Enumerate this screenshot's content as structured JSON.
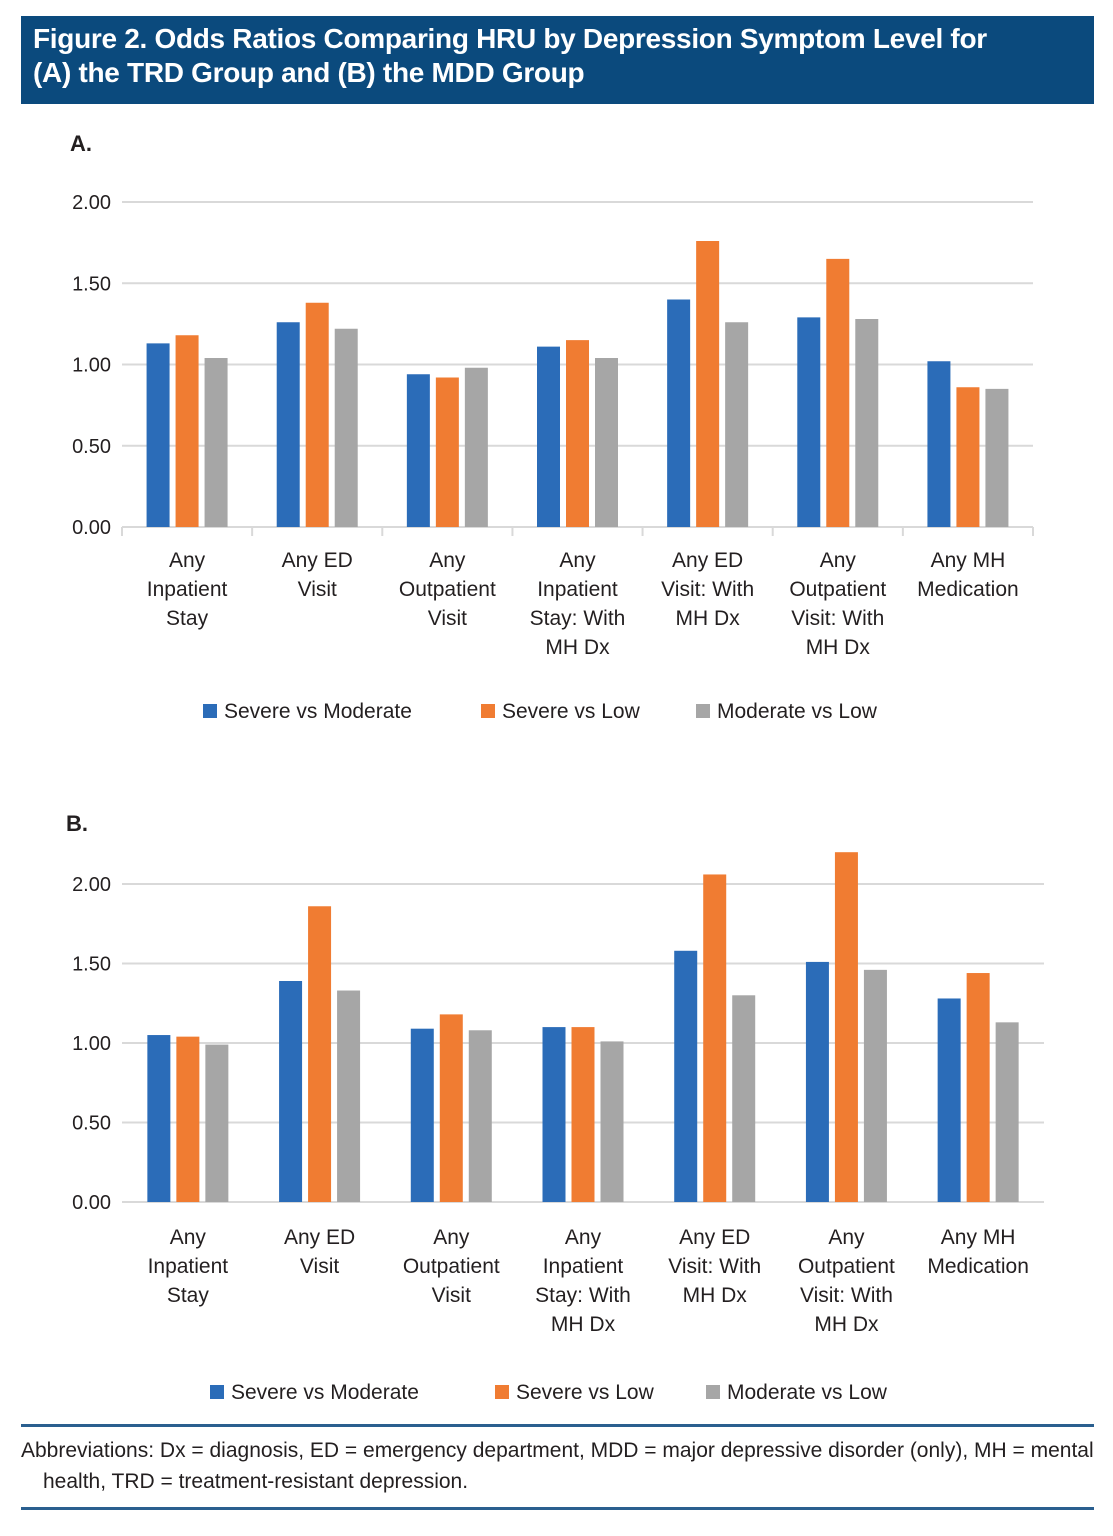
{
  "figure": {
    "title_line1": "Figure 2. Odds Ratios Comparing HRU by Depression Symptom Level for",
    "title_line2": "(A) the TRD Group and (B) the MDD Group",
    "footnote": "Abbreviations: Dx = diagnosis, ED = emergency department, MDD = major depressive disorder (only), MH = mental health, TRD = treatment-resistant depression.",
    "colors": {
      "Severe vs Moderate": "#2b6cb8",
      "Severe vs Low": "#f07c32",
      "Moderate vs Low": "#a6a6a6",
      "title_bg": "#0b4a7d"
    }
  },
  "chart_data": [
    {
      "type": "bar",
      "panel": "A.",
      "title": "A.",
      "subtitle": "TRD Group",
      "xlabel": "",
      "ylabel": "",
      "ylim": [
        0,
        2.0
      ],
      "yticks": [
        "0.00",
        "0.50",
        "1.00",
        "1.50",
        "2.00"
      ],
      "ytick_values": [
        0,
        0.5,
        1.0,
        1.5,
        2.0
      ],
      "grid": true,
      "legend_position": "bottom",
      "categories": [
        [
          "Any",
          "Inpatient",
          "Stay"
        ],
        [
          "Any ED",
          "Visit"
        ],
        [
          "Any",
          "Outpatient",
          "Visit"
        ],
        [
          "Any",
          "Inpatient",
          "Stay: With",
          "MH Dx"
        ],
        [
          "Any ED",
          "Visit: With",
          "MH Dx"
        ],
        [
          "Any",
          "Outpatient",
          "Visit: With",
          "MH Dx"
        ],
        [
          "Any MH",
          "Medication"
        ]
      ],
      "series": [
        {
          "name": "Severe vs Moderate",
          "color": "#2b6cb8",
          "values": [
            1.13,
            1.26,
            0.94,
            1.11,
            1.4,
            1.29,
            1.02
          ]
        },
        {
          "name": "Severe vs Low",
          "color": "#f07c32",
          "values": [
            1.18,
            1.38,
            0.92,
            1.15,
            1.76,
            1.65,
            0.86
          ]
        },
        {
          "name": "Moderate vs Low",
          "color": "#a6a6a6",
          "values": [
            1.04,
            1.22,
            0.98,
            1.04,
            1.26,
            1.28,
            0.85
          ]
        }
      ]
    },
    {
      "type": "bar",
      "panel": "B.",
      "title": "B.",
      "subtitle": "MDD Group",
      "xlabel": "",
      "ylabel": "",
      "ylim": [
        0,
        2.0
      ],
      "yticks": [
        "0.00",
        "0.50",
        "1.00",
        "1.50",
        "2.00"
      ],
      "ytick_values": [
        0,
        0.5,
        1.0,
        1.5,
        2.0
      ],
      "grid": true,
      "legend_position": "bottom",
      "categories": [
        [
          "Any",
          "Inpatient",
          "Stay"
        ],
        [
          "Any ED",
          "Visit"
        ],
        [
          "Any",
          "Outpatient",
          "Visit"
        ],
        [
          "Any",
          "Inpatient",
          "Stay: With",
          "MH Dx"
        ],
        [
          "Any ED",
          "Visit: With",
          "MH Dx"
        ],
        [
          "Any",
          "Outpatient",
          "Visit: With",
          "MH Dx"
        ],
        [
          "Any MH",
          "Medication"
        ]
      ],
      "series": [
        {
          "name": "Severe vs Moderate",
          "color": "#2b6cb8",
          "values": [
            1.05,
            1.39,
            1.09,
            1.1,
            1.58,
            1.51,
            1.28
          ]
        },
        {
          "name": "Severe vs Low",
          "color": "#f07c32",
          "values": [
            1.04,
            1.86,
            1.18,
            1.1,
            2.06,
            2.2,
            1.44
          ]
        },
        {
          "name": "Moderate vs Low",
          "color": "#a6a6a6",
          "values": [
            0.99,
            1.33,
            1.08,
            1.01,
            1.3,
            1.46,
            1.13
          ]
        }
      ]
    }
  ]
}
